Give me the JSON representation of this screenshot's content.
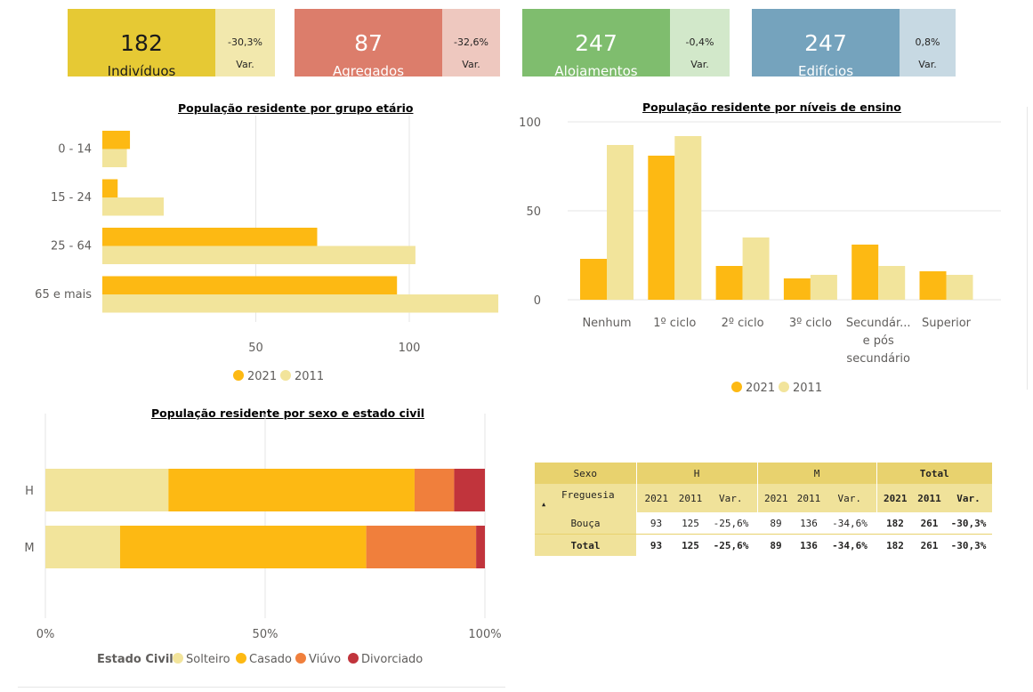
{
  "kpis": [
    {
      "value": "182",
      "label": "Indivíduos",
      "pct": "-30,3%",
      "var": "Var.",
      "color": "#e6c934",
      "light": "#f2e8ad"
    },
    {
      "value": "87",
      "label": "Agregados",
      "pct": "-32,6%",
      "var": "Var.",
      "color": "#dc7d6b",
      "light": "#eec8bf"
    },
    {
      "value": "247",
      "label": "Alojamentos",
      "pct": "-0,4%",
      "var": "Var.",
      "color": "#7fbd6e",
      "light": "#d2e8ca"
    },
    {
      "value": "247",
      "label": "Edifícios",
      "pct": "0,8%",
      "var": "Var.",
      "color": "#75a3bd",
      "light": "#c7d9e3"
    }
  ],
  "colors": {
    "y2021": "#fdb913",
    "y2011": "#f2e49b",
    "solteiro": "#f2e49b",
    "casado": "#fdb913",
    "viuvo": "#f07f3c",
    "divorciado": "#c1343c"
  },
  "chart_data": [
    {
      "type": "bar",
      "orientation": "horizontal",
      "title": "População residente por grupo etário",
      "categories": [
        "0 - 14",
        "15 - 24",
        "25 - 64",
        "65 e mais"
      ],
      "series": [
        {
          "name": "2021",
          "values": [
            9,
            5,
            70,
            96
          ]
        },
        {
          "name": "2011",
          "values": [
            8,
            20,
            102,
            129
          ]
        }
      ],
      "xticks": [
        "50",
        "100"
      ],
      "xlim": [
        0,
        130
      ],
      "legend": "bottom"
    },
    {
      "type": "bar",
      "title": "População residente por níveis de ensino",
      "categories": [
        "Nenhum",
        "1º ciclo",
        "2º ciclo",
        "3º ciclo",
        "Secundár... e pós secundário",
        "Superior"
      ],
      "category_lines": [
        [
          "Nenhum"
        ],
        [
          "1º ciclo"
        ],
        [
          "2º ciclo"
        ],
        [
          "3º ciclo"
        ],
        [
          "Secundár...",
          "e pós",
          "secundário"
        ],
        [
          "Superior"
        ]
      ],
      "series": [
        {
          "name": "2021",
          "values": [
            23,
            81,
            19,
            12,
            31,
            16
          ]
        },
        {
          "name": "2011",
          "values": [
            87,
            92,
            35,
            14,
            19,
            14
          ]
        }
      ],
      "yticks": [
        "0",
        "50",
        "100"
      ],
      "ylim": [
        0,
        100
      ],
      "legend": "bottom"
    },
    {
      "type": "bar",
      "orientation": "horizontal",
      "stacked": "100%",
      "title": "População residente por sexo e estado civil",
      "categories": [
        "H",
        "M"
      ],
      "legend_title": "Estado Civil",
      "series": [
        {
          "name": "Solteiro",
          "values": [
            28,
            17
          ]
        },
        {
          "name": "Casado",
          "values": [
            56,
            56
          ]
        },
        {
          "name": "Viúvo",
          "values": [
            9,
            25
          ]
        },
        {
          "name": "Divorciado",
          "values": [
            7,
            2
          ]
        }
      ],
      "xticks": [
        "0%",
        "50%",
        "100%"
      ],
      "legend": "bottom"
    }
  ],
  "table": {
    "col_header": "Sexo",
    "row_header": "Freguesia",
    "groups": [
      "H",
      "M",
      "Total"
    ],
    "subheaders": [
      "2021",
      "2011",
      "Var."
    ],
    "rows": [
      {
        "label": "Bouça",
        "values": [
          "93",
          "125",
          "-25,6%",
          "89",
          "136",
          "-34,6%",
          "182",
          "261",
          "-30,3%"
        ]
      },
      {
        "label": "Total",
        "values": [
          "93",
          "125",
          "-25,6%",
          "89",
          "136",
          "-34,6%",
          "182",
          "261",
          "-30,3%"
        ]
      }
    ]
  }
}
